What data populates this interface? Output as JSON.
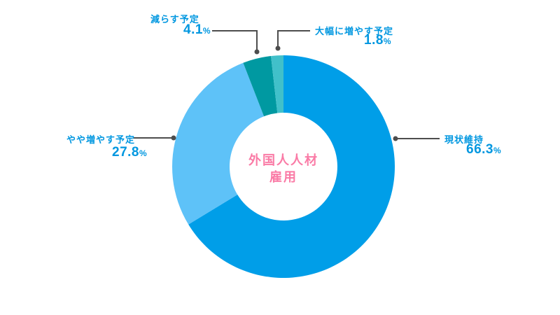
{
  "chart_data": {
    "type": "pie",
    "subtype": "donut",
    "title": "外国人人材雇用",
    "center_label": {
      "line1": "外国人人材",
      "line2": "雇用"
    },
    "categories": [
      "現状維持",
      "やや増やす予定",
      "減らす予定",
      "大幅に増やす予定"
    ],
    "values": [
      66.3,
      27.8,
      4.1,
      1.8
    ],
    "unit": "%",
    "colors": [
      "#009EE8",
      "#5EC2F8",
      "#0099A1",
      "#41C0CA"
    ],
    "start_angle_deg": 0,
    "direction": "clockwise",
    "legend_position": "none (direct labels with leader lines)",
    "label_color": "#0097E0",
    "center_label_color": "#FA7BA6",
    "leader_line_color": "#4D4D4D"
  }
}
